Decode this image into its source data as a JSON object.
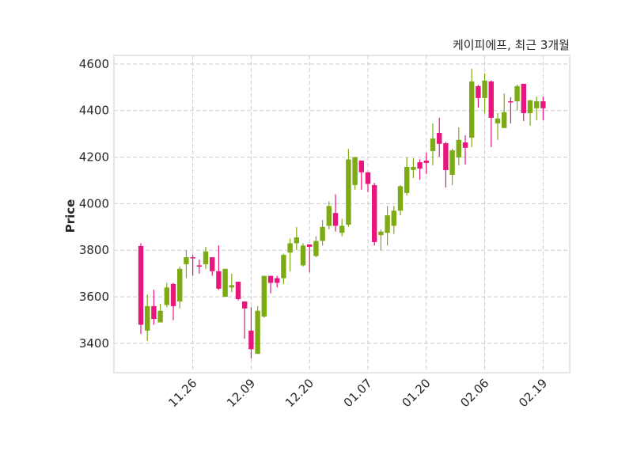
{
  "chart_data": {
    "type": "candlestick",
    "title": "케이피에프, 최근 3개월",
    "xlabel": "",
    "ylabel": "Price",
    "ylim": [
      3274,
      4637
    ],
    "xlim": [
      -4.15,
      66.1
    ],
    "yticks": [
      3400,
      3600,
      3800,
      4000,
      4200,
      4400,
      4600
    ],
    "xticks": [
      {
        "index": 8,
        "label": "11.26"
      },
      {
        "index": 17,
        "label": "12.09"
      },
      {
        "index": 26,
        "label": "12.20"
      },
      {
        "index": 35,
        "label": "01.07"
      },
      {
        "index": 44,
        "label": "01.20"
      },
      {
        "index": 53,
        "label": "02.06"
      },
      {
        "index": 62,
        "label": "02.19"
      }
    ],
    "grid": true,
    "colors": {
      "up": "#7cab14",
      "down": "#e8157c",
      "grid": "#cccccc",
      "frame": "#dddddd"
    },
    "ohlc": [
      [
        3818,
        3830,
        3440,
        3480
      ],
      [
        3455,
        3610,
        3410,
        3560
      ],
      [
        3560,
        3630,
        3480,
        3505
      ],
      [
        3490,
        3570,
        3490,
        3540
      ],
      [
        3565,
        3660,
        3555,
        3640
      ],
      [
        3655,
        3660,
        3500,
        3560
      ],
      [
        3580,
        3730,
        3550,
        3720
      ],
      [
        3740,
        3800,
        3680,
        3770
      ],
      [
        3770,
        3780,
        3690,
        3765
      ],
      [
        3735,
        3760,
        3700,
        3730
      ],
      [
        3740,
        3815,
        3720,
        3795
      ],
      [
        3770,
        3770,
        3690,
        3710
      ],
      [
        3710,
        3820,
        3630,
        3635
      ],
      [
        3600,
        3720,
        3600,
        3720
      ],
      [
        3640,
        3700,
        3620,
        3650
      ],
      [
        3665,
        3665,
        3585,
        3590
      ],
      [
        3580,
        3580,
        3420,
        3550
      ],
      [
        3455,
        3555,
        3335,
        3375
      ],
      [
        3355,
        3560,
        3355,
        3540
      ],
      [
        3515,
        3690,
        3510,
        3690
      ],
      [
        3690,
        3690,
        3615,
        3660
      ],
      [
        3680,
        3690,
        3640,
        3660
      ],
      [
        3680,
        3785,
        3655,
        3780
      ],
      [
        3790,
        3850,
        3710,
        3830
      ],
      [
        3830,
        3900,
        3800,
        3855
      ],
      [
        3735,
        3830,
        3730,
        3820
      ],
      [
        3825,
        3825,
        3705,
        3815
      ],
      [
        3775,
        3860,
        3770,
        3840
      ],
      [
        3840,
        3930,
        3820,
        3900
      ],
      [
        3905,
        4010,
        3890,
        3990
      ],
      [
        3960,
        4040,
        3880,
        3905
      ],
      [
        3875,
        3935,
        3860,
        3905
      ],
      [
        3910,
        4235,
        3900,
        4190
      ],
      [
        4080,
        4200,
        4060,
        4200
      ],
      [
        4185,
        4185,
        4060,
        4135
      ],
      [
        4135,
        4135,
        4050,
        4085
      ],
      [
        4080,
        4090,
        3820,
        3835
      ],
      [
        3865,
        3890,
        3800,
        3880
      ],
      [
        3875,
        3990,
        3820,
        3950
      ],
      [
        3905,
        3990,
        3870,
        3970
      ],
      [
        3970,
        4080,
        3950,
        4075
      ],
      [
        4046,
        4199,
        4035,
        4158
      ],
      [
        4145,
        4195,
        4110,
        4158
      ],
      [
        4178,
        4190,
        4103,
        4151
      ],
      [
        4185,
        4219,
        4127,
        4175
      ],
      [
        4226,
        4345,
        4165,
        4280
      ],
      [
        4304,
        4369,
        4202,
        4257
      ],
      [
        4260,
        4265,
        4070,
        4144
      ],
      [
        4124,
        4236,
        4080,
        4229
      ],
      [
        4199,
        4328,
        4165,
        4274
      ],
      [
        4263,
        4294,
        4168,
        4240
      ],
      [
        4284,
        4580,
        4243,
        4525
      ],
      [
        4505,
        4510,
        4413,
        4454
      ],
      [
        4454,
        4560,
        4389,
        4529
      ],
      [
        4525,
        4530,
        4243,
        4369
      ],
      [
        4345,
        4389,
        4274,
        4366
      ],
      [
        4325,
        4474,
        4325,
        4393
      ],
      [
        4440,
        4457,
        4345,
        4438
      ],
      [
        4440,
        4512,
        4400,
        4505
      ],
      [
        4515,
        4515,
        4355,
        4389
      ],
      [
        4389,
        4446,
        4335,
        4444
      ],
      [
        4410,
        4460,
        4359,
        4440
      ],
      [
        4440,
        4460,
        4359,
        4410
      ]
    ]
  }
}
